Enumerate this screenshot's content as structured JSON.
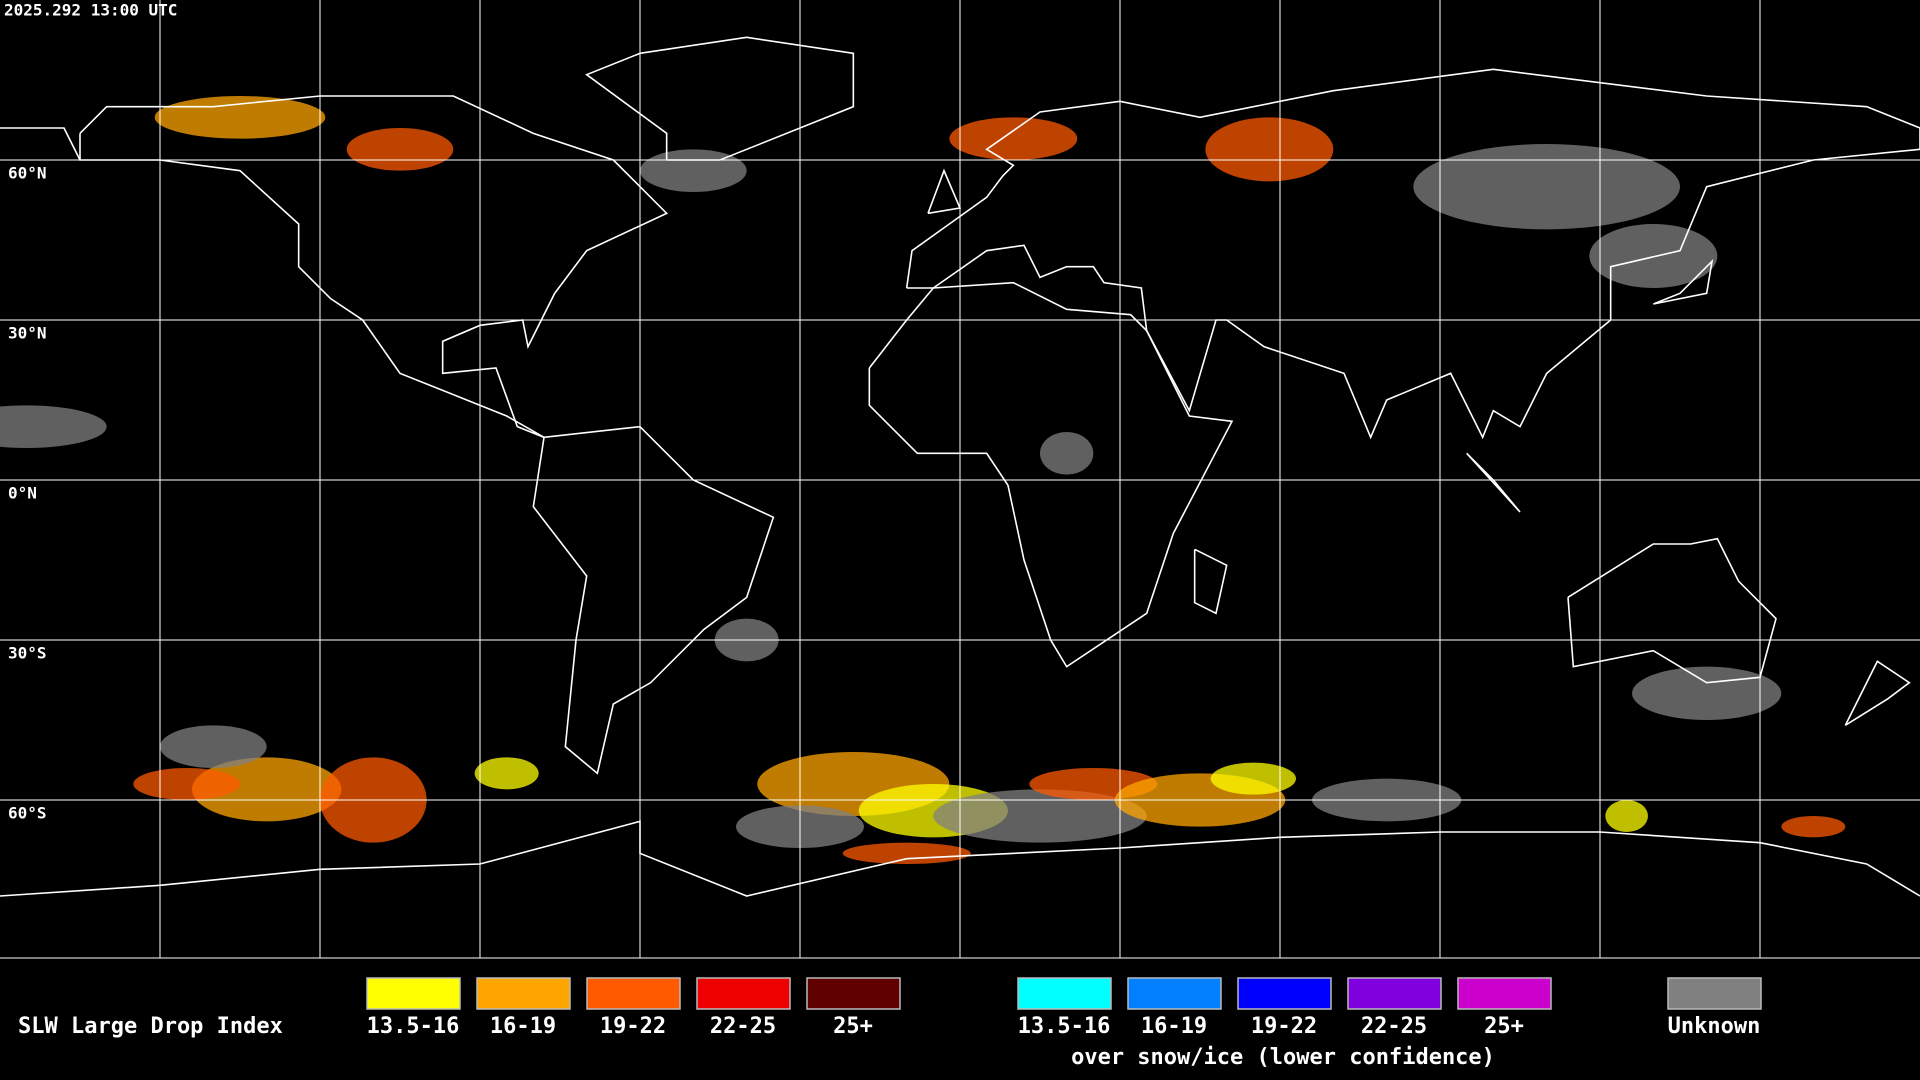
{
  "header": {
    "timestamp": "2025.292 13:00 UTC"
  },
  "map": {
    "latitude_labels": [
      "60°N",
      "30°N",
      "0°N",
      "30°S",
      "60°S"
    ]
  },
  "legend": {
    "title": "SLW Large Drop Index",
    "groups": [
      {
        "items": [
          {
            "label": "13.5-16",
            "color": "#ffff00"
          },
          {
            "label": "16-19",
            "color": "#ffa500"
          },
          {
            "label": "19-22",
            "color": "#ff5a00"
          },
          {
            "label": "22-25",
            "color": "#ee0000"
          },
          {
            "label": "25+",
            "color": "#600000"
          }
        ]
      },
      {
        "items": [
          {
            "label": "13.5-16",
            "color": "#00ffff"
          },
          {
            "label": "16-19",
            "color": "#0080ff"
          },
          {
            "label": "19-22",
            "color": "#0000ff"
          },
          {
            "label": "22-25",
            "color": "#8000e0"
          },
          {
            "label": "25+",
            "color": "#cc00cc"
          }
        ],
        "caption": "over snow/ice (lower confidence)"
      },
      {
        "items": [
          {
            "label": "Unknown",
            "color": "#808080"
          }
        ]
      }
    ]
  }
}
